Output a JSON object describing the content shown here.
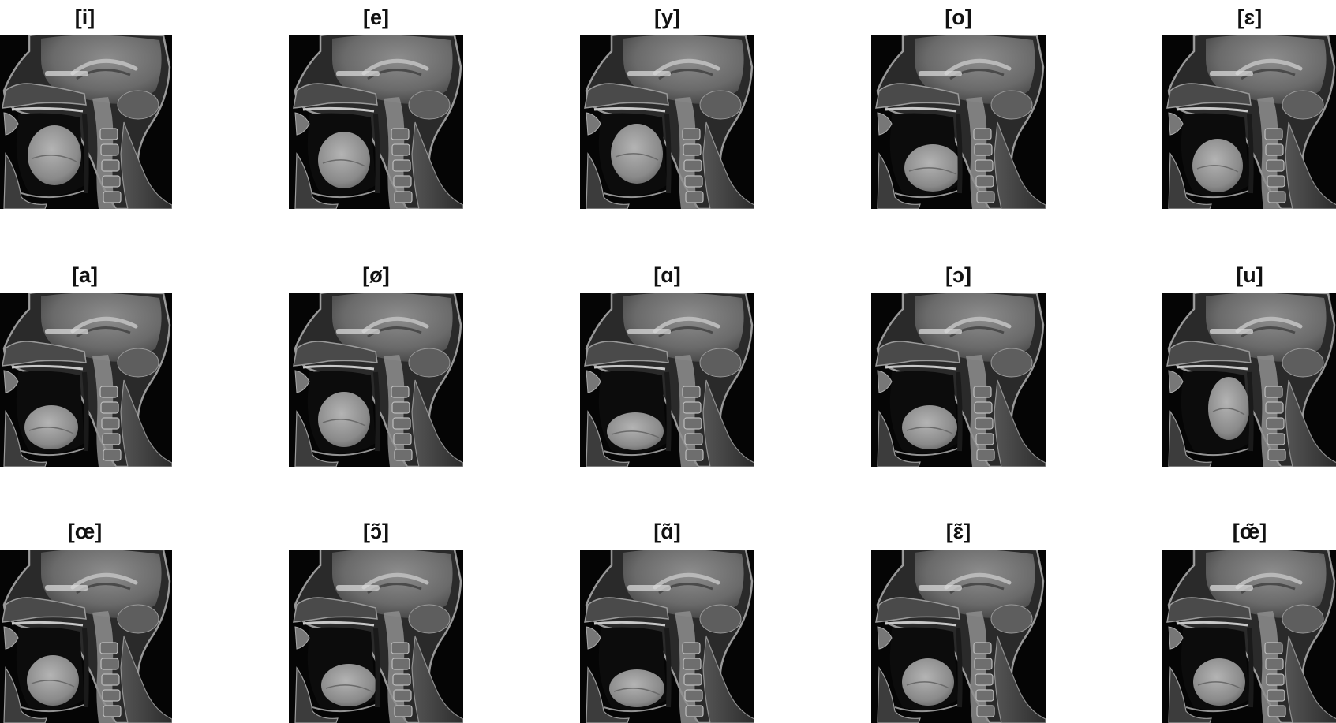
{
  "figure": {
    "panels": [
      {
        "label": "[i]",
        "tongue": "front-high"
      },
      {
        "label": "[e]",
        "tongue": "front-mid"
      },
      {
        "label": "[y]",
        "tongue": "front-high-round"
      },
      {
        "label": "[o]",
        "tongue": "back-mid"
      },
      {
        "label": "[ɛ]",
        "tongue": "front-low"
      },
      {
        "label": "[a]",
        "tongue": "low"
      },
      {
        "label": "[ø]",
        "tongue": "front-mid-round"
      },
      {
        "label": "[ɑ]",
        "tongue": "back-low"
      },
      {
        "label": "[ɔ]",
        "tongue": "back-low-mid"
      },
      {
        "label": "[u]",
        "tongue": "back-high"
      },
      {
        "label": "[œ]",
        "tongue": "front-low-round"
      },
      {
        "label": "[ɔ̃]",
        "tongue": "nasal-back"
      },
      {
        "label": "[ɑ̃]",
        "tongue": "nasal-low"
      },
      {
        "label": "[ɛ̃]",
        "tongue": "nasal-front"
      },
      {
        "label": "[œ̃]",
        "tongue": "nasal-round"
      }
    ]
  }
}
